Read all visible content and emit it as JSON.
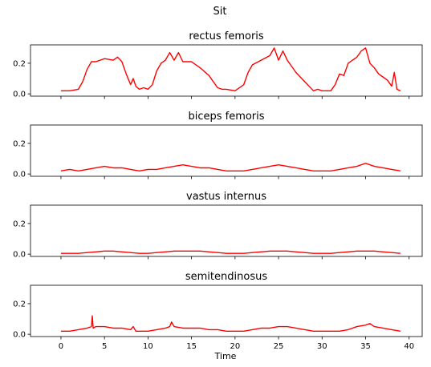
{
  "figure": {
    "suptitle": "Sit",
    "shared_xlabel": "Time"
  },
  "chart_data": [
    {
      "type": "line",
      "title": "rectus femoris",
      "xlabel": "",
      "ylabel": "",
      "xlim": [
        -3.5,
        41.5
      ],
      "ylim": [
        -0.015,
        0.32
      ],
      "xticks": [
        0,
        5,
        10,
        15,
        20,
        25,
        30,
        35,
        40
      ],
      "yticks": [
        0.0,
        0.2
      ],
      "ytick_labels": [
        "0.0",
        "0.2"
      ],
      "show_xtick_labels": false,
      "grid": false,
      "series": [
        {
          "color": "#ff0000",
          "x": [
            0,
            1,
            2,
            2.5,
            3,
            3.5,
            4,
            5,
            6,
            6.5,
            7,
            7.5,
            8,
            8.3,
            8.6,
            9,
            9.5,
            10,
            10.5,
            11,
            11.5,
            12,
            12.5,
            13,
            13.5,
            14,
            15,
            16,
            17,
            17.5,
            18,
            18.5,
            19,
            20,
            21,
            21.5,
            22,
            23,
            24,
            24.5,
            25,
            25.5,
            26,
            27,
            28,
            28.5,
            29,
            29.5,
            30,
            31,
            31.5,
            32,
            32.5,
            33,
            33.5,
            34,
            34.5,
            35,
            35.5,
            36,
            36.5,
            37,
            37.5,
            38,
            38.3,
            38.6,
            39
          ],
          "values": [
            0.02,
            0.02,
            0.03,
            0.08,
            0.16,
            0.21,
            0.21,
            0.23,
            0.22,
            0.24,
            0.21,
            0.13,
            0.06,
            0.1,
            0.05,
            0.03,
            0.04,
            0.03,
            0.06,
            0.15,
            0.2,
            0.22,
            0.27,
            0.22,
            0.27,
            0.21,
            0.21,
            0.17,
            0.12,
            0.08,
            0.04,
            0.03,
            0.03,
            0.02,
            0.06,
            0.14,
            0.19,
            0.22,
            0.25,
            0.3,
            0.22,
            0.28,
            0.22,
            0.14,
            0.08,
            0.05,
            0.02,
            0.03,
            0.02,
            0.02,
            0.06,
            0.13,
            0.12,
            0.2,
            0.22,
            0.24,
            0.28,
            0.3,
            0.2,
            0.17,
            0.13,
            0.11,
            0.09,
            0.05,
            0.14,
            0.03,
            0.02
          ]
        }
      ]
    },
    {
      "type": "line",
      "title": "biceps femoris",
      "xlabel": "",
      "ylabel": "",
      "xlim": [
        -3.5,
        41.5
      ],
      "ylim": [
        -0.015,
        0.32
      ],
      "xticks": [
        0,
        5,
        10,
        15,
        20,
        25,
        30,
        35,
        40
      ],
      "yticks": [
        0.0,
        0.2
      ],
      "ytick_labels": [
        "0.0",
        "0.2"
      ],
      "show_xtick_labels": false,
      "grid": false,
      "series": [
        {
          "color": "#ff0000",
          "x": [
            0,
            1,
            2,
            3,
            4,
            5,
            6,
            7,
            8,
            9,
            10,
            11,
            12,
            13,
            14,
            15,
            16,
            17,
            18,
            19,
            20,
            21,
            22,
            23,
            24,
            25,
            26,
            27,
            28,
            29,
            30,
            31,
            32,
            33,
            34,
            35,
            36,
            37,
            38,
            39
          ],
          "values": [
            0.02,
            0.03,
            0.02,
            0.03,
            0.04,
            0.05,
            0.04,
            0.04,
            0.03,
            0.02,
            0.03,
            0.03,
            0.04,
            0.05,
            0.06,
            0.05,
            0.04,
            0.04,
            0.03,
            0.02,
            0.02,
            0.02,
            0.03,
            0.04,
            0.05,
            0.06,
            0.05,
            0.04,
            0.03,
            0.02,
            0.02,
            0.02,
            0.03,
            0.04,
            0.05,
            0.07,
            0.05,
            0.04,
            0.03,
            0.02
          ]
        }
      ]
    },
    {
      "type": "line",
      "title": "vastus internus",
      "xlabel": "",
      "ylabel": "",
      "xlim": [
        -3.5,
        41.5
      ],
      "ylim": [
        -0.015,
        0.32
      ],
      "xticks": [
        0,
        5,
        10,
        15,
        20,
        25,
        30,
        35,
        40
      ],
      "yticks": [
        0.0,
        0.2
      ],
      "ytick_labels": [
        "0.0",
        "0.2"
      ],
      "show_xtick_labels": false,
      "grid": false,
      "series": [
        {
          "color": "#ff0000",
          "x": [
            0,
            2,
            3,
            4,
            5,
            6,
            7,
            8,
            9,
            10,
            11,
            12,
            13,
            14,
            15,
            16,
            17,
            18,
            19,
            20,
            21,
            22,
            23,
            24,
            25,
            26,
            27,
            28,
            29,
            30,
            31,
            32,
            33,
            34,
            35,
            36,
            37,
            38,
            39
          ],
          "values": [
            0.005,
            0.005,
            0.01,
            0.015,
            0.02,
            0.02,
            0.015,
            0.01,
            0.005,
            0.005,
            0.01,
            0.015,
            0.02,
            0.02,
            0.02,
            0.02,
            0.015,
            0.01,
            0.005,
            0.005,
            0.005,
            0.01,
            0.015,
            0.02,
            0.02,
            0.02,
            0.015,
            0.01,
            0.005,
            0.005,
            0.005,
            0.01,
            0.015,
            0.02,
            0.02,
            0.02,
            0.015,
            0.01,
            0.005
          ]
        }
      ]
    },
    {
      "type": "line",
      "title": "semitendinosus",
      "xlabel": "Time",
      "ylabel": "",
      "xlim": [
        -3.5,
        41.5
      ],
      "ylim": [
        -0.015,
        0.32
      ],
      "xticks": [
        0,
        5,
        10,
        15,
        20,
        25,
        30,
        35,
        40
      ],
      "xtick_labels": [
        "0",
        "5",
        "10",
        "15",
        "20",
        "25",
        "30",
        "35",
        "40"
      ],
      "yticks": [
        0.0,
        0.2
      ],
      "ytick_labels": [
        "0.0",
        "0.2"
      ],
      "show_xtick_labels": true,
      "grid": false,
      "series": [
        {
          "color": "#ff0000",
          "x": [
            0,
            1,
            2,
            3,
            3.5,
            3.6,
            3.7,
            4,
            5,
            6,
            7,
            8,
            8.3,
            8.6,
            9,
            10,
            11,
            12,
            12.5,
            12.7,
            13,
            14,
            15,
            16,
            17,
            18,
            19,
            20,
            21,
            22,
            23,
            24,
            25,
            26,
            27,
            28,
            29,
            30,
            31,
            32,
            33,
            34,
            35,
            35.5,
            36,
            37,
            38,
            39
          ],
          "values": [
            0.02,
            0.02,
            0.03,
            0.04,
            0.05,
            0.12,
            0.04,
            0.05,
            0.05,
            0.04,
            0.04,
            0.03,
            0.05,
            0.02,
            0.02,
            0.02,
            0.03,
            0.04,
            0.05,
            0.08,
            0.05,
            0.04,
            0.04,
            0.04,
            0.03,
            0.03,
            0.02,
            0.02,
            0.02,
            0.03,
            0.04,
            0.04,
            0.05,
            0.05,
            0.04,
            0.03,
            0.02,
            0.02,
            0.02,
            0.02,
            0.03,
            0.05,
            0.06,
            0.07,
            0.05,
            0.04,
            0.03,
            0.02
          ]
        }
      ]
    }
  ]
}
